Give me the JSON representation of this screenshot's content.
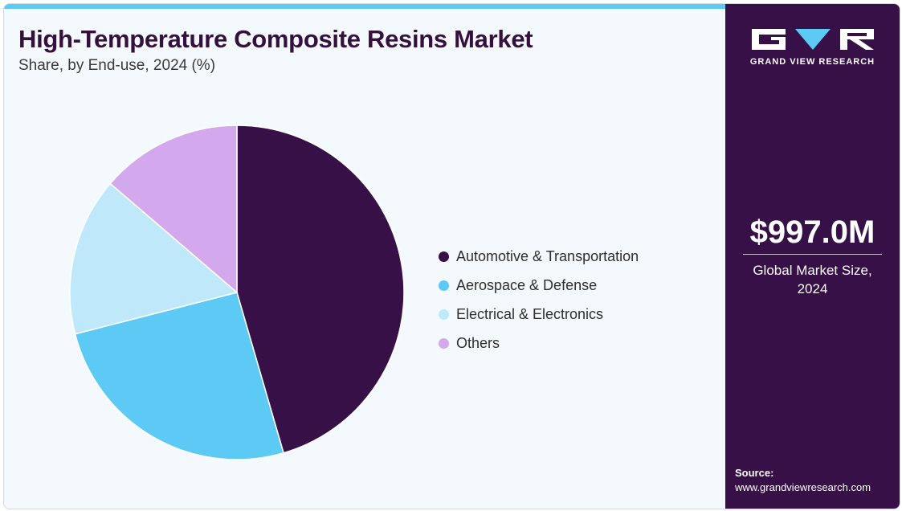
{
  "header": {
    "title": "High-Temperature Composite Resins Market",
    "subtitle": "Share, by End-use, 2024 (%)"
  },
  "chart_data": {
    "type": "pie",
    "title": "High-Temperature Composite Resins Market",
    "subtitle": "Share, by End-use, 2024 (%)",
    "categories": [
      "Automotive & Transportation",
      "Aerospace & Defense",
      "Electrical & Electronics",
      "Others"
    ],
    "values": [
      45.5,
      25.5,
      15.3,
      13.7
    ],
    "colors": [
      "#361046",
      "#5ccaf4",
      "#bfe9fa",
      "#d4a8ec"
    ],
    "legend_position": "right"
  },
  "sidebar": {
    "brand": "GRAND VIEW RESEARCH",
    "market_size": "$997.0M",
    "market_caption_line1": "Global Market Size,",
    "market_caption_line2": "2024",
    "source_label": "Source:",
    "source_url": "www.grandviewresearch.com"
  },
  "colors": {
    "accent_bar": "#5ccaf4",
    "sidebar_bg": "#361046",
    "title_color": "#35103f"
  }
}
